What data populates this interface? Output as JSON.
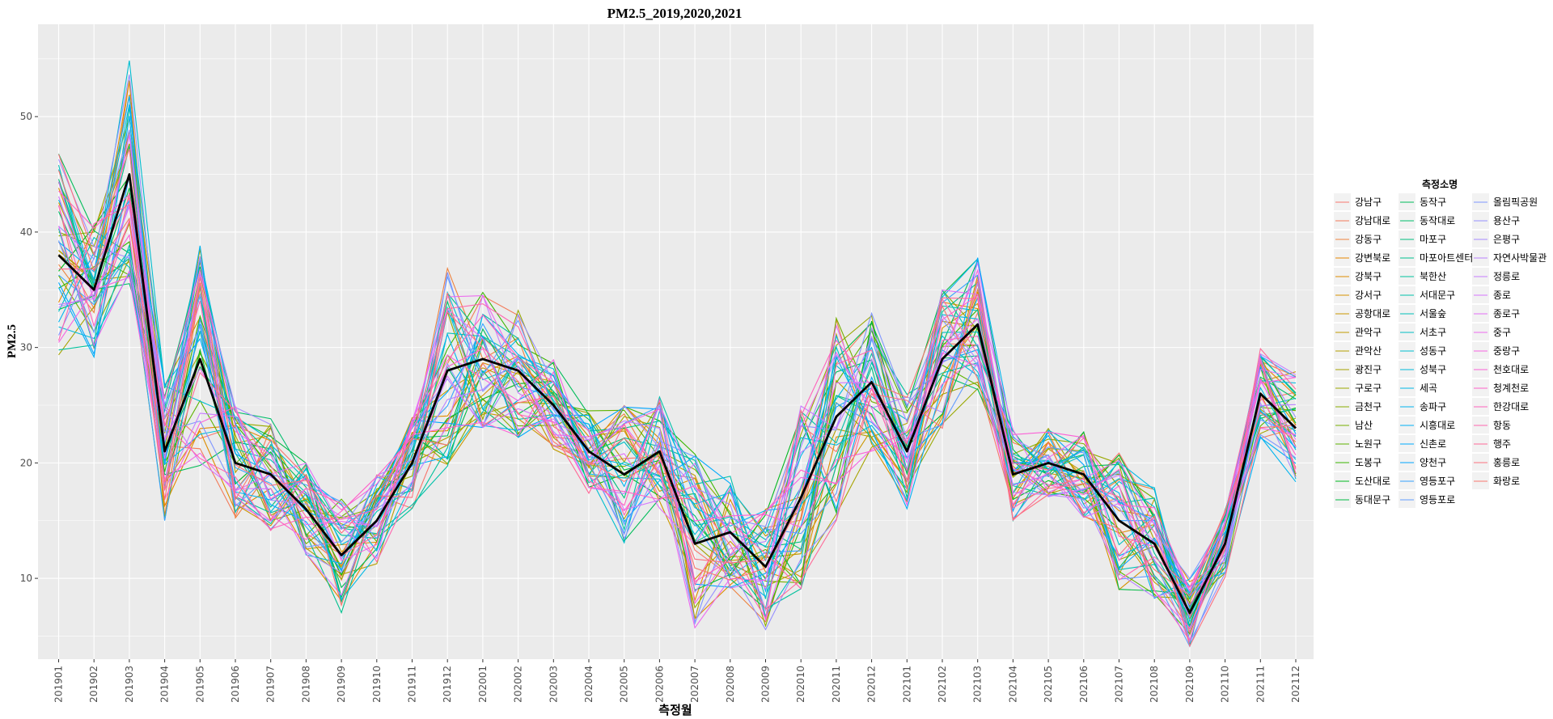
{
  "chart_data": {
    "type": "line",
    "title": "PM2.5_2019,2020,2021",
    "xlabel": "측정월",
    "ylabel": "PM2.5",
    "ylim": [
      3,
      58
    ],
    "yticks": [
      10,
      20,
      30,
      40,
      50
    ],
    "grid": true,
    "background": "#ebebeb",
    "legend_position": "right",
    "legend_title": "측정소명",
    "x": [
      "201901",
      "201902",
      "201903",
      "201904",
      "201905",
      "201906",
      "201907",
      "201908",
      "201909",
      "201910",
      "201911",
      "201912",
      "202001",
      "202002",
      "202003",
      "202004",
      "202005",
      "202006",
      "202007",
      "202008",
      "202009",
      "202010",
      "202011",
      "202012",
      "202101",
      "202102",
      "202103",
      "202104",
      "202105",
      "202106",
      "202107",
      "202108",
      "202109",
      "202110",
      "202111",
      "202112"
    ],
    "mean_series": {
      "color": "#000000",
      "values": [
        38,
        35,
        45,
        21,
        29,
        20,
        19,
        16,
        12,
        15,
        20,
        28,
        29,
        28,
        25,
        21,
        19,
        21,
        13,
        14,
        11,
        17,
        24,
        27,
        21,
        29,
        32,
        19,
        20,
        19,
        15,
        13,
        7,
        13,
        26,
        23
      ]
    },
    "series": [
      {
        "name": "강남구",
        "color": "#F8766D"
      },
      {
        "name": "강남대로",
        "color": "#F37B59"
      },
      {
        "name": "강동구",
        "color": "#ED813E"
      },
      {
        "name": "강변북로",
        "color": "#E58700"
      },
      {
        "name": "강북구",
        "color": "#DE8C00"
      },
      {
        "name": "강서구",
        "color": "#D59100"
      },
      {
        "name": "공항대로",
        "color": "#CB9600"
      },
      {
        "name": "관악구",
        "color": "#C09B00"
      },
      {
        "name": "관악산",
        "color": "#B49F00"
      },
      {
        "name": "광진구",
        "color": "#A7A300"
      },
      {
        "name": "구로구",
        "color": "#99A800"
      },
      {
        "name": "금천구",
        "color": "#88AC00"
      },
      {
        "name": "남산",
        "color": "#76AF00"
      },
      {
        "name": "노원구",
        "color": "#5EB300"
      },
      {
        "name": "도봉구",
        "color": "#39B600"
      },
      {
        "name": "도산대로",
        "color": "#00B81F"
      },
      {
        "name": "동대문구",
        "color": "#00BA42"
      },
      {
        "name": "동작구",
        "color": "#00BC59"
      },
      {
        "name": "동작대로",
        "color": "#00BE6C"
      },
      {
        "name": "마포구",
        "color": "#00BF7D"
      },
      {
        "name": "마포아트센터",
        "color": "#00C08D"
      },
      {
        "name": "북한산",
        "color": "#00C19C"
      },
      {
        "name": "서대문구",
        "color": "#00C1AA"
      },
      {
        "name": "서울숲",
        "color": "#00C0B8"
      },
      {
        "name": "서초구",
        "color": "#00BFC4"
      },
      {
        "name": "성동구",
        "color": "#00BDD0"
      },
      {
        "name": "성북구",
        "color": "#00BBDB"
      },
      {
        "name": "세곡",
        "color": "#00B8E5"
      },
      {
        "name": "송파구",
        "color": "#00B4EF"
      },
      {
        "name": "시흥대로",
        "color": "#00B0F6"
      },
      {
        "name": "신촌로",
        "color": "#00ABFD"
      },
      {
        "name": "양천구",
        "color": "#00A5FF"
      },
      {
        "name": "영등포구",
        "color": "#35A2FF"
      },
      {
        "name": "영등포로",
        "color": "#619CFF"
      },
      {
        "name": "올림픽공원",
        "color": "#7F96FF"
      },
      {
        "name": "용산구",
        "color": "#9590FF"
      },
      {
        "name": "은평구",
        "color": "#A58AFF"
      },
      {
        "name": "자연사박물관",
        "color": "#B983FF"
      },
      {
        "name": "정릉로",
        "color": "#C77CFF"
      },
      {
        "name": "종로",
        "color": "#D575FE"
      },
      {
        "name": "종로구",
        "color": "#E26EF7"
      },
      {
        "name": "중구",
        "color": "#EC69EF"
      },
      {
        "name": "중랑구",
        "color": "#F564E3"
      },
      {
        "name": "천호대로",
        "color": "#FB61D7"
      },
      {
        "name": "청계천로",
        "color": "#FF61C9"
      },
      {
        "name": "한강대로",
        "color": "#FF62BC"
      },
      {
        "name": "항동",
        "color": "#FF65AE"
      },
      {
        "name": "행주",
        "color": "#FF6A98"
      },
      {
        "name": "홍릉로",
        "color": "#FC717F"
      },
      {
        "name": "화랑로",
        "color": "#F8766D"
      }
    ]
  }
}
